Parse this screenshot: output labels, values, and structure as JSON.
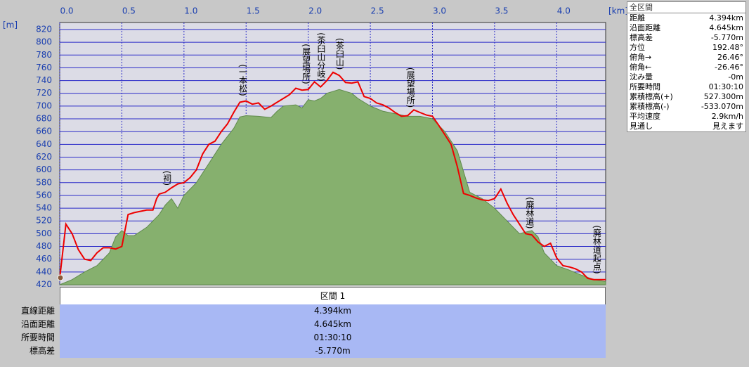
{
  "chart_data": {
    "type": "line",
    "x_unit": "[km]",
    "y_unit": "[m]",
    "xlim": [
      0,
      4.394
    ],
    "ylim": [
      420,
      831
    ],
    "xticks": [
      {
        "value": 0,
        "label": "0.0"
      },
      0.5,
      {
        "value": 1,
        "label": "1.0"
      },
      1.5,
      {
        "value": 2,
        "label": "2.0"
      },
      2.5,
      {
        "value": 3,
        "label": "3.0"
      },
      3.5,
      {
        "value": 4,
        "label": "4.0"
      }
    ],
    "yticks": [
      420,
      440,
      460,
      480,
      500,
      520,
      540,
      560,
      580,
      600,
      620,
      640,
      660,
      680,
      700,
      720,
      740,
      760,
      780,
      800,
      820
    ],
    "grid": true,
    "series": [
      {
        "style": "area",
        "color": "#86b06e",
        "x": [
          0,
          0.1,
          0.2,
          0.3,
          0.4,
          0.45,
          0.5,
          0.55,
          0.6,
          0.7,
          0.8,
          0.85,
          0.9,
          0.95,
          1.0,
          1.1,
          1.2,
          1.3,
          1.4,
          1.45,
          1.5,
          1.6,
          1.7,
          1.75,
          1.8,
          1.9,
          1.95,
          2.0,
          2.05,
          2.1,
          2.15,
          2.25,
          2.35,
          2.4,
          2.5,
          2.6,
          2.7,
          2.8,
          2.9,
          3.0,
          3.1,
          3.2,
          3.3,
          3.4,
          3.5,
          3.6,
          3.7,
          3.8,
          3.85,
          3.9,
          4.0,
          4.1,
          4.2,
          4.3,
          4.394
        ],
        "values": [
          420,
          428,
          440,
          450,
          470,
          495,
          505,
          497,
          497,
          510,
          530,
          545,
          555,
          540,
          560,
          580,
          610,
          640,
          665,
          683,
          685,
          684,
          682,
          692,
          700,
          702,
          697,
          710,
          708,
          712,
          720,
          726,
          720,
          712,
          700,
          692,
          688,
          684,
          684,
          680,
          660,
          630,
          565,
          555,
          540,
          520,
          500,
          505,
          495,
          470,
          450,
          443,
          435,
          428,
          425
        ]
      },
      {
        "style": "line",
        "color": "#ee0000",
        "x": [
          0,
          0.05,
          0.1,
          0.15,
          0.2,
          0.25,
          0.3,
          0.35,
          0.4,
          0.45,
          0.5,
          0.55,
          0.6,
          0.7,
          0.75,
          0.78,
          0.8,
          0.85,
          0.9,
          0.95,
          1.0,
          1.05,
          1.1,
          1.15,
          1.2,
          1.25,
          1.3,
          1.35,
          1.4,
          1.45,
          1.5,
          1.55,
          1.6,
          1.65,
          1.7,
          1.75,
          1.8,
          1.85,
          1.9,
          1.95,
          2.0,
          2.05,
          2.1,
          2.15,
          2.2,
          2.25,
          2.3,
          2.35,
          2.4,
          2.45,
          2.5,
          2.55,
          2.6,
          2.65,
          2.7,
          2.75,
          2.8,
          2.85,
          2.9,
          2.95,
          3.0,
          3.05,
          3.1,
          3.15,
          3.2,
          3.25,
          3.3,
          3.35,
          3.4,
          3.45,
          3.5,
          3.55,
          3.6,
          3.65,
          3.7,
          3.75,
          3.8,
          3.85,
          3.9,
          3.95,
          4.0,
          4.05,
          4.1,
          4.15,
          4.2,
          4.25,
          4.3,
          4.394
        ],
        "values": [
          430,
          515,
          500,
          475,
          460,
          458,
          470,
          478,
          478,
          476,
          480,
          530,
          533,
          537,
          537,
          555,
          562,
          565,
          572,
          578,
          580,
          588,
          600,
          625,
          640,
          645,
          660,
          672,
          690,
          706,
          708,
          703,
          705,
          695,
          700,
          706,
          712,
          718,
          728,
          725,
          726,
          738,
          730,
          740,
          753,
          748,
          737,
          736,
          738,
          715,
          712,
          705,
          702,
          697,
          690,
          684,
          685,
          694,
          690,
          686,
          684,
          670,
          655,
          640,
          605,
          563,
          560,
          556,
          553,
          552,
          555,
          570,
          548,
          530,
          515,
          500,
          498,
          487,
          480,
          485,
          462,
          450,
          448,
          445,
          440,
          430,
          428,
          428
        ]
      }
    ],
    "annotations": [
      {
        "x": 0.86,
        "text": "(祠)"
      },
      {
        "x": 1.47,
        "text": "(一本松)"
      },
      {
        "x": 1.98,
        "text": "(展望場所)"
      },
      {
        "x": 2.1,
        "text": "(茶臼山分岐)"
      },
      {
        "x": 2.25,
        "text": "(茶臼山)"
      },
      {
        "x": 2.82,
        "text": "(展望場所)"
      },
      {
        "x": 3.78,
        "text": "(廃林道)"
      },
      {
        "x": 4.32,
        "text": "(廃林道起点)"
      }
    ]
  },
  "panel": {
    "title": "全区間",
    "rows": [
      [
        "距離",
        "4.394km"
      ],
      [
        "沿面距離",
        "4.645km"
      ],
      [
        "標高差",
        "-5.770m"
      ],
      [
        "方位",
        "192.48°"
      ],
      [
        "俯角→",
        "26.46°"
      ],
      [
        "俯角←",
        "-26.46°"
      ],
      [
        "沈み量",
        "-0m"
      ],
      [
        "所要時間",
        "01:30:10"
      ],
      [
        "累積標高(+)",
        "527.300m"
      ],
      [
        "累積標高(-)",
        "-533.070m"
      ],
      [
        "平均速度",
        "2.9km/h"
      ],
      [
        "見通し",
        "見えます"
      ]
    ]
  },
  "segment": {
    "header": "区間 1",
    "rows": [
      [
        "直線距離",
        "4.394km"
      ],
      [
        "沿面距離",
        "4.645km"
      ],
      [
        "所要時間",
        "01:30:10"
      ],
      [
        "標高差",
        "-5.770m"
      ]
    ]
  }
}
